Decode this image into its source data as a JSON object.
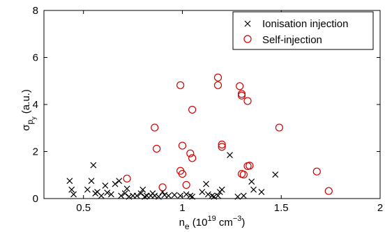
{
  "chart_data": {
    "type": "scatter",
    "xlim": [
      0.3,
      2.0
    ],
    "ylim": [
      0,
      8
    ],
    "x_ticks": [
      0.5,
      1,
      1.5,
      2
    ],
    "x_tick_labels": [
      "0.5",
      "1",
      "1.5",
      "2"
    ],
    "y_ticks": [
      0,
      2,
      4,
      6,
      8
    ],
    "y_tick_labels": [
      "0",
      "2",
      "4",
      "6",
      "8"
    ],
    "xlabel": "n",
    "xlabel_sub": "e",
    "xlabel_rest": " (10",
    "xlabel_sup1": "19",
    "xlabel_mid": " cm",
    "xlabel_sup2": "−3",
    "xlabel_end": ")",
    "ylabel_sigma": "σ",
    "ylabel_sub": "p",
    "ylabel_subsub": "y",
    "ylabel_unit": " (a.u.)",
    "grid": false,
    "legend_position": "top-right",
    "series": [
      {
        "name": "Ionisation injection",
        "marker": "x",
        "color": "#000000",
        "points": [
          [
            0.43,
            0.75
          ],
          [
            0.44,
            0.38
          ],
          [
            0.45,
            0.18
          ],
          [
            0.52,
            0.38
          ],
          [
            0.54,
            0.75
          ],
          [
            0.55,
            1.42
          ],
          [
            0.56,
            0.22
          ],
          [
            0.57,
            0.28
          ],
          [
            0.59,
            0.12
          ],
          [
            0.61,
            0.55
          ],
          [
            0.62,
            0.25
          ],
          [
            0.64,
            0.18
          ],
          [
            0.66,
            0.62
          ],
          [
            0.68,
            0.75
          ],
          [
            0.69,
            0.12
          ],
          [
            0.71,
            0.22
          ],
          [
            0.72,
            0.42
          ],
          [
            0.73,
            0.08
          ],
          [
            0.75,
            0.12
          ],
          [
            0.77,
            0.12
          ],
          [
            0.79,
            0.22
          ],
          [
            0.8,
            0.38
          ],
          [
            0.81,
            0.08
          ],
          [
            0.82,
            0.12
          ],
          [
            0.84,
            0.12
          ],
          [
            0.85,
            0.22
          ],
          [
            0.86,
            0.12
          ],
          [
            0.88,
            0.08
          ],
          [
            0.9,
            0.28
          ],
          [
            0.91,
            0.15
          ],
          [
            0.93,
            0.12
          ],
          [
            0.96,
            0.15
          ],
          [
            0.99,
            0.12
          ],
          [
            1.02,
            0.18
          ],
          [
            1.04,
            0.12
          ],
          [
            1.05,
            0.08
          ],
          [
            1.1,
            0.28
          ],
          [
            1.12,
            0.62
          ],
          [
            1.13,
            0.18
          ],
          [
            1.15,
            0.12
          ],
          [
            1.16,
            0.08
          ],
          [
            1.18,
            0.12
          ],
          [
            1.19,
            0.28
          ],
          [
            1.2,
            0.38
          ],
          [
            1.24,
            1.85
          ],
          [
            1.28,
            0.08
          ],
          [
            1.31,
            0.12
          ],
          [
            1.35,
            0.72
          ],
          [
            1.36,
            0.38
          ],
          [
            1.4,
            0.28
          ],
          [
            1.47,
            1.02
          ]
        ]
      },
      {
        "name": "Self-injection",
        "marker": "circle",
        "color": "#d40000",
        "points": [
          [
            0.72,
            0.85
          ],
          [
            0.86,
            3.02
          ],
          [
            0.87,
            2.12
          ],
          [
            0.9,
            0.48
          ],
          [
            0.99,
            4.82
          ],
          [
            0.99,
            1.18
          ],
          [
            1.0,
            2.25
          ],
          [
            1.0,
            1.05
          ],
          [
            1.02,
            0.58
          ],
          [
            1.04,
            1.92
          ],
          [
            1.05,
            1.72
          ],
          [
            1.05,
            3.78
          ],
          [
            1.18,
            5.15
          ],
          [
            1.18,
            4.82
          ],
          [
            1.2,
            2.3
          ],
          [
            1.2,
            2.2
          ],
          [
            1.29,
            4.78
          ],
          [
            1.3,
            4.45
          ],
          [
            1.3,
            4.38
          ],
          [
            1.3,
            1.05
          ],
          [
            1.31,
            1.02
          ],
          [
            1.33,
            4.15
          ],
          [
            1.33,
            1.38
          ],
          [
            1.34,
            1.4
          ],
          [
            1.49,
            3.02
          ],
          [
            1.68,
            1.15
          ],
          [
            1.74,
            0.32
          ]
        ]
      }
    ]
  }
}
